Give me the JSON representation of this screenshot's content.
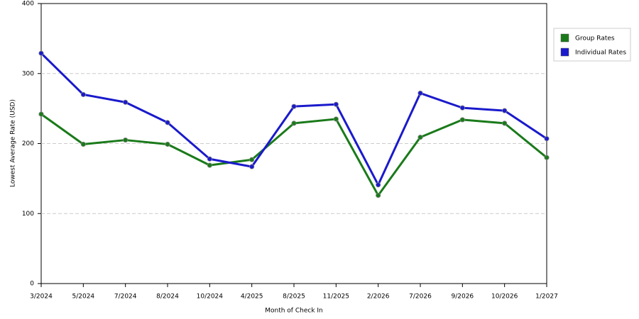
{
  "chart_data": {
    "type": "line",
    "x_label": "Month of Check In",
    "y_label": "Lowest Average Rate (USD)",
    "categories": [
      "3/2024",
      "5/2024",
      "7/2024",
      "8/2024",
      "10/2024",
      "4/2025",
      "8/2025",
      "11/2025",
      "2/2026",
      "7/2026",
      "9/2026",
      "10/2026",
      "1/2027"
    ],
    "series": [
      {
        "name": "Group Rates",
        "color": "#1a7a1a",
        "values": [
          242,
          199,
          205,
          199,
          169,
          177,
          229,
          235,
          126,
          209,
          234,
          229,
          180
        ]
      },
      {
        "name": "Individual Rates",
        "color": "#1a1acc",
        "values": [
          329,
          270,
          259,
          230,
          178,
          167,
          253,
          256,
          141,
          272,
          251,
          247,
          207
        ]
      }
    ],
    "ylim": [
      0,
      400
    ],
    "yticks": [
      0,
      100,
      200,
      300,
      400
    ],
    "grid": true,
    "legend": "right"
  }
}
